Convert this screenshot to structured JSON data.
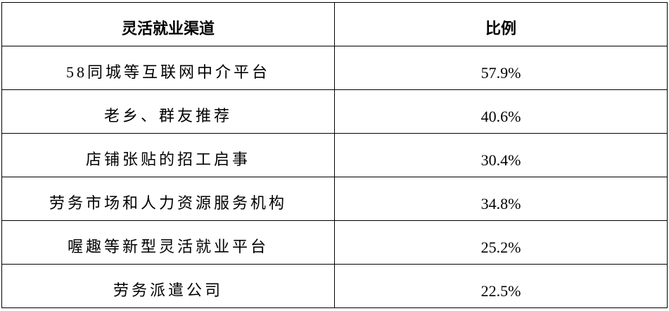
{
  "table": {
    "headers": [
      "灵活就业渠道",
      "比例"
    ],
    "rows": [
      {
        "channel": "58同城等互联网中介平台",
        "ratio": "57.9%"
      },
      {
        "channel": "老乡、群友推荐",
        "ratio": "40.6%"
      },
      {
        "channel": "店铺张贴的招工启事",
        "ratio": "30.4%"
      },
      {
        "channel": "劳务市场和人力资源服务机构",
        "ratio": "34.8%"
      },
      {
        "channel": "喔趣等新型灵活就业平台",
        "ratio": "25.2%"
      },
      {
        "channel": "劳务派遣公司",
        "ratio": "22.5%"
      }
    ]
  }
}
